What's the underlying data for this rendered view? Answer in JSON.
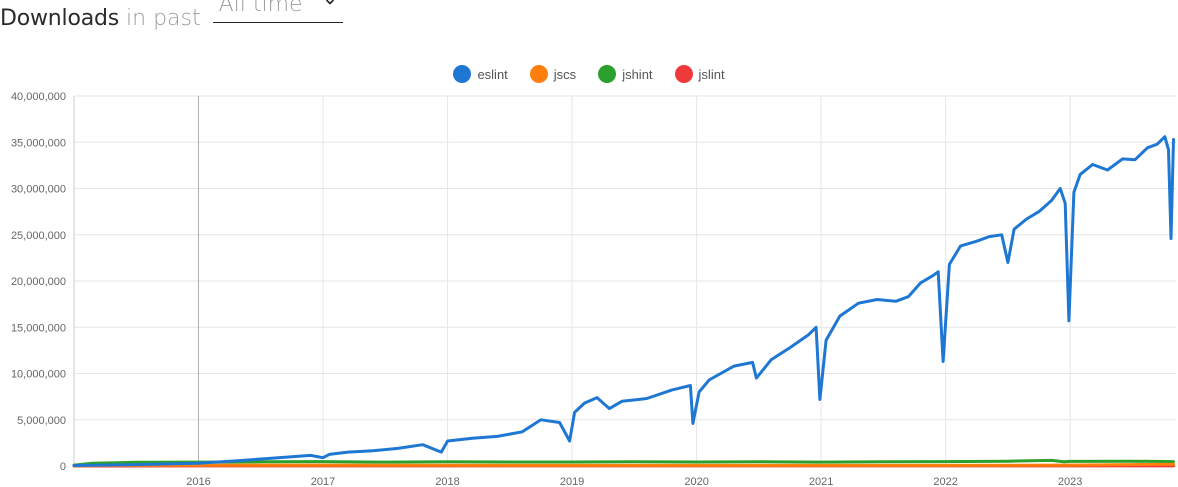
{
  "header": {
    "title": "Downloads",
    "subtitle": "in past",
    "range_value": "All time"
  },
  "chart_data": {
    "type": "line",
    "xlabel": "",
    "ylabel": "",
    "x_ticks": [
      "2016",
      "2017",
      "2018",
      "2019",
      "2020",
      "2021",
      "2022",
      "2023"
    ],
    "y_ticks": [
      "0",
      "5,000,000",
      "10,000,000",
      "15,000,000",
      "20,000,000",
      "25,000,000",
      "30,000,000",
      "35,000,000",
      "40,000,000"
    ],
    "ylim": [
      0,
      40000000
    ],
    "xlim": [
      2015.0,
      2023.85
    ],
    "grid": true,
    "legend_position": "top-center",
    "series": [
      {
        "name": "eslint",
        "color": "#1f77d4",
        "points": [
          [
            2015.0,
            50000
          ],
          [
            2015.5,
            150000
          ],
          [
            2016.0,
            300000
          ],
          [
            2016.3,
            550000
          ],
          [
            2016.6,
            850000
          ],
          [
            2016.9,
            1150000
          ],
          [
            2017.0,
            900000
          ],
          [
            2017.05,
            1250000
          ],
          [
            2017.2,
            1500000
          ],
          [
            2017.4,
            1650000
          ],
          [
            2017.6,
            1900000
          ],
          [
            2017.8,
            2300000
          ],
          [
            2017.95,
            1500000
          ],
          [
            2018.0,
            2700000
          ],
          [
            2018.2,
            3000000
          ],
          [
            2018.4,
            3200000
          ],
          [
            2018.6,
            3700000
          ],
          [
            2018.75,
            5000000
          ],
          [
            2018.9,
            4700000
          ],
          [
            2018.98,
            2700000
          ],
          [
            2019.02,
            5800000
          ],
          [
            2019.1,
            6800000
          ],
          [
            2019.2,
            7400000
          ],
          [
            2019.3,
            6200000
          ],
          [
            2019.4,
            7000000
          ],
          [
            2019.6,
            7300000
          ],
          [
            2019.8,
            8200000
          ],
          [
            2019.95,
            8700000
          ],
          [
            2019.97,
            4600000
          ],
          [
            2020.02,
            8000000
          ],
          [
            2020.1,
            9300000
          ],
          [
            2020.3,
            10800000
          ],
          [
            2020.45,
            11200000
          ],
          [
            2020.48,
            9500000
          ],
          [
            2020.6,
            11500000
          ],
          [
            2020.75,
            12800000
          ],
          [
            2020.9,
            14200000
          ],
          [
            2020.96,
            15000000
          ],
          [
            2020.99,
            7200000
          ],
          [
            2021.04,
            13600000
          ],
          [
            2021.15,
            16200000
          ],
          [
            2021.3,
            17600000
          ],
          [
            2021.45,
            18000000
          ],
          [
            2021.6,
            17800000
          ],
          [
            2021.7,
            18300000
          ],
          [
            2021.8,
            19800000
          ],
          [
            2021.9,
            20600000
          ],
          [
            2021.94,
            21000000
          ],
          [
            2021.98,
            11300000
          ],
          [
            2022.03,
            21800000
          ],
          [
            2022.12,
            23800000
          ],
          [
            2022.25,
            24300000
          ],
          [
            2022.35,
            24800000
          ],
          [
            2022.45,
            25000000
          ],
          [
            2022.5,
            22000000
          ],
          [
            2022.55,
            25600000
          ],
          [
            2022.65,
            26700000
          ],
          [
            2022.75,
            27500000
          ],
          [
            2022.85,
            28700000
          ],
          [
            2022.92,
            30000000
          ],
          [
            2022.96,
            28400000
          ],
          [
            2022.99,
            15700000
          ],
          [
            2023.03,
            29600000
          ],
          [
            2023.08,
            31500000
          ],
          [
            2023.18,
            32600000
          ],
          [
            2023.3,
            32000000
          ],
          [
            2023.42,
            33200000
          ],
          [
            2023.52,
            33100000
          ],
          [
            2023.62,
            34400000
          ],
          [
            2023.7,
            34800000
          ],
          [
            2023.76,
            35600000
          ],
          [
            2023.79,
            34200000
          ],
          [
            2023.81,
            24600000
          ],
          [
            2023.83,
            35300000
          ]
        ]
      },
      {
        "name": "jscs",
        "color": "#ff7f0e",
        "points": [
          [
            2015.0,
            30000
          ],
          [
            2015.4,
            60000
          ],
          [
            2016.0,
            90000
          ],
          [
            2017.0,
            100000
          ],
          [
            2018.0,
            80000
          ],
          [
            2019.0,
            60000
          ],
          [
            2020.0,
            60000
          ],
          [
            2021.0,
            60000
          ],
          [
            2022.0,
            70000
          ],
          [
            2023.0,
            100000
          ],
          [
            2023.83,
            180000
          ]
        ]
      },
      {
        "name": "jshint",
        "color": "#2ca02c",
        "points": [
          [
            2015.0,
            100000
          ],
          [
            2015.15,
            300000
          ],
          [
            2015.5,
            400000
          ],
          [
            2016.0,
            420000
          ],
          [
            2016.5,
            450000
          ],
          [
            2017.0,
            480000
          ],
          [
            2017.5,
            420000
          ],
          [
            2018.0,
            450000
          ],
          [
            2018.5,
            430000
          ],
          [
            2019.0,
            430000
          ],
          [
            2019.5,
            470000
          ],
          [
            2020.0,
            430000
          ],
          [
            2020.5,
            460000
          ],
          [
            2021.0,
            420000
          ],
          [
            2021.5,
            450000
          ],
          [
            2022.0,
            480000
          ],
          [
            2022.5,
            520000
          ],
          [
            2022.85,
            600000
          ],
          [
            2022.95,
            450000
          ],
          [
            2023.0,
            500000
          ],
          [
            2023.5,
            520000
          ],
          [
            2023.83,
            480000
          ]
        ]
      },
      {
        "name": "jslint",
        "color": "#f0393a",
        "points": [
          [
            2015.0,
            5000
          ],
          [
            2016.0,
            8000
          ],
          [
            2018.0,
            8000
          ],
          [
            2020.0,
            6000
          ],
          [
            2022.0,
            7000
          ],
          [
            2023.83,
            9000
          ]
        ]
      }
    ]
  }
}
